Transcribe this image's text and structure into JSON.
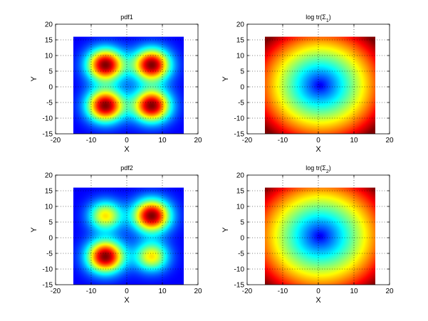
{
  "colors": {
    "colormap": "jet",
    "axes_border": "#000000",
    "grid": "#000000",
    "background": "#ffffff"
  },
  "chart_data": [
    {
      "type": "heatmap",
      "title": "pdf1",
      "xlabel": "X",
      "ylabel": "Y",
      "xlim": [
        -20,
        20
      ],
      "ylim": [
        -15,
        20
      ],
      "xticks": [
        -20,
        -10,
        0,
        10,
        20
      ],
      "yticks": [
        -15,
        -10,
        -5,
        0,
        5,
        10,
        15,
        20
      ],
      "grid": true,
      "data_extent": {
        "x": [
          -15,
          16
        ],
        "y": [
          -15,
          16
        ]
      },
      "field": {
        "kind": "gaussian_mixture",
        "peaks": [
          {
            "x": -6,
            "y": 7,
            "weight": 1.0,
            "sigma": 3.6
          },
          {
            "x": 7,
            "y": 7,
            "weight": 1.0,
            "sigma": 3.6
          },
          {
            "x": -6,
            "y": -6,
            "weight": 1.0,
            "sigma": 3.6
          },
          {
            "x": 7,
            "y": -6,
            "weight": 1.0,
            "sigma": 3.6
          }
        ],
        "background": 0.05
      }
    },
    {
      "type": "heatmap",
      "title_prefix": "log tr(Σ",
      "title_sub": "1",
      "title_suffix": ")",
      "xlabel": "X",
      "ylabel": "Y",
      "xlim": [
        -20,
        20
      ],
      "ylim": [
        -15,
        20
      ],
      "xticks": [
        -20,
        -10,
        0,
        10,
        20
      ],
      "yticks": [
        -15,
        -10,
        -5,
        0,
        5,
        10,
        15,
        20
      ],
      "grid": true,
      "data_extent": {
        "x": [
          -15,
          16
        ],
        "y": [
          -15,
          16
        ]
      },
      "field": {
        "kind": "radial",
        "center": {
          "x": 0.5,
          "y": 0.5
        },
        "scale": 20.5
      }
    },
    {
      "type": "heatmap",
      "title": "pdf2",
      "xlabel": "X",
      "ylabel": "Y",
      "xlim": [
        -20,
        20
      ],
      "ylim": [
        -15,
        20
      ],
      "xticks": [
        -20,
        -10,
        0,
        10,
        20
      ],
      "yticks": [
        -15,
        -10,
        -5,
        0,
        5,
        10,
        15,
        20
      ],
      "grid": true,
      "data_extent": {
        "x": [
          -15,
          16
        ],
        "y": [
          -15,
          16
        ]
      },
      "field": {
        "kind": "gaussian_mixture",
        "peaks": [
          {
            "x": -6,
            "y": 7,
            "weight": 0.6,
            "sigma": 3.3
          },
          {
            "x": 7,
            "y": 7,
            "weight": 1.0,
            "sigma": 3.6
          },
          {
            "x": -6,
            "y": -6,
            "weight": 1.0,
            "sigma": 3.6
          },
          {
            "x": 7,
            "y": -6,
            "weight": 0.6,
            "sigma": 3.3
          }
        ],
        "background": 0.18
      }
    },
    {
      "type": "heatmap",
      "title_prefix": "log tr(Σ",
      "title_sub": "2",
      "title_suffix": ")",
      "xlabel": "X",
      "ylabel": "Y",
      "xlim": [
        -20,
        20
      ],
      "ylim": [
        -15,
        20
      ],
      "xticks": [
        -20,
        -10,
        0,
        10,
        20
      ],
      "yticks": [
        -15,
        -10,
        -5,
        0,
        5,
        10,
        15,
        20
      ],
      "grid": true,
      "data_extent": {
        "x": [
          -15,
          16
        ],
        "y": [
          -15,
          16
        ]
      },
      "field": {
        "kind": "radial",
        "center": {
          "x": 0.5,
          "y": 0.5
        },
        "scale": 21.5
      }
    }
  ]
}
